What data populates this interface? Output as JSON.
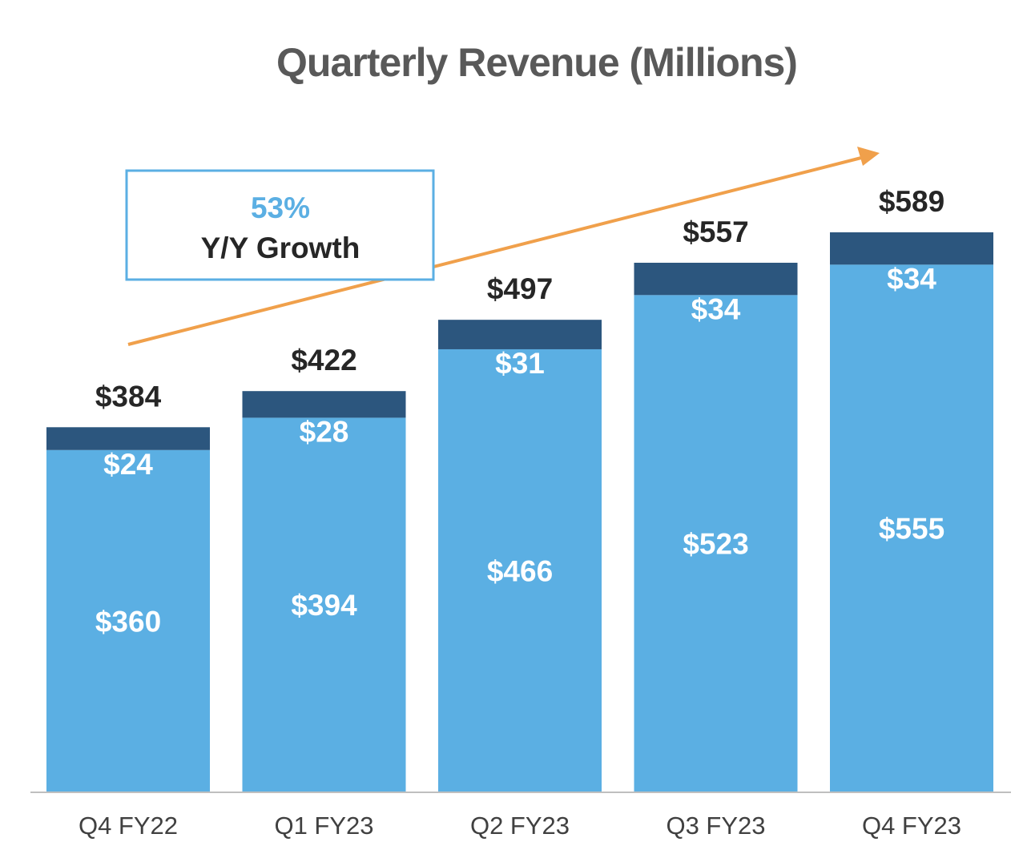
{
  "chart_data": {
    "type": "bar",
    "stacked": true,
    "title": "Quarterly Revenue (Millions)",
    "xlabel": "",
    "ylabel": "",
    "categories": [
      "Q4 FY22",
      "Q1 FY23",
      "Q2 FY23",
      "Q3 FY23",
      "Q4 FY23"
    ],
    "series": [
      {
        "name": "Base",
        "values": [
          360,
          394,
          466,
          523,
          555
        ],
        "labels": [
          "$360",
          "$394",
          "$466",
          "$523",
          "$555"
        ],
        "color": "#5bafe3"
      },
      {
        "name": "Top",
        "values": [
          24,
          28,
          31,
          34,
          34
        ],
        "labels": [
          "$24",
          "$28",
          "$31",
          "$34",
          "$34"
        ],
        "color": "#2c567e"
      }
    ],
    "totals": [
      384,
      422,
      497,
      557,
      589
    ],
    "total_labels": [
      "$384",
      "$422",
      "$497",
      "$557",
      "$589"
    ],
    "ylim": [
      0,
      589
    ],
    "grid": false,
    "legend": "none",
    "annotation": {
      "value": "53%",
      "text": "Y/Y Growth",
      "value_color": "#5bafe3",
      "border_color": "#5bafe3",
      "arrow_color": "#f0a04b"
    }
  }
}
